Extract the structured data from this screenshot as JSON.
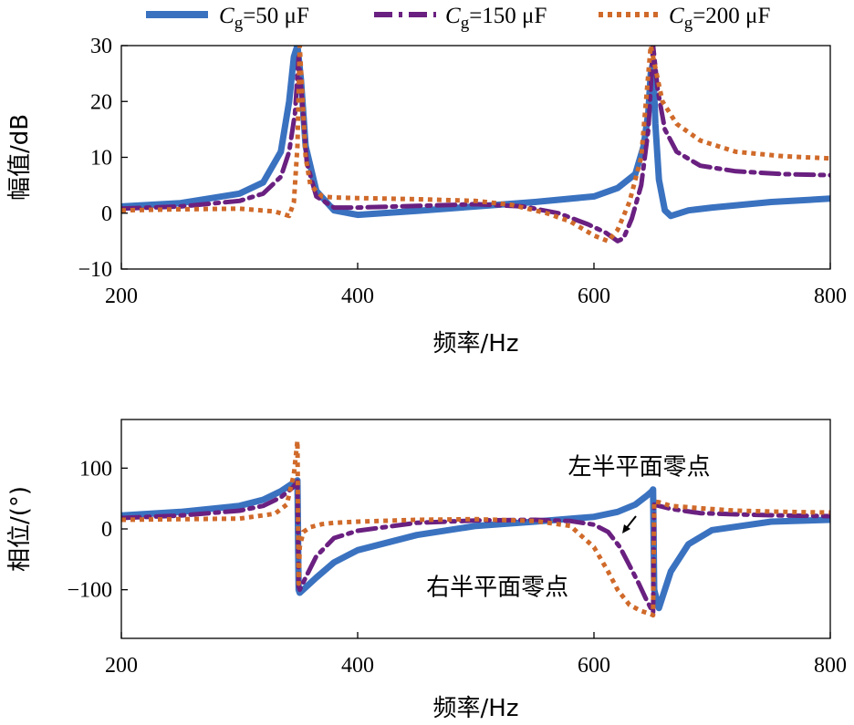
{
  "legend": [
    {
      "name_main": "C",
      "name_sub": "g",
      "name_rest": "=50 μF",
      "color": "#3a72c0",
      "dash": "solid"
    },
    {
      "name_main": "C",
      "name_sub": "g",
      "name_rest": "=150 μF",
      "color": "#6a2080",
      "dash": "dashdot"
    },
    {
      "name_main": "C",
      "name_sub": "g",
      "name_rest": "=200 μF",
      "color": "#d06a2a",
      "dash": "dotted"
    }
  ],
  "chart_data": [
    {
      "type": "line",
      "title": "",
      "xlabel": "频率/Hz",
      "ylabel": "幅值/dB",
      "xlim": [
        200,
        800
      ],
      "ylim": [
        -10,
        30
      ],
      "xticks": [
        200,
        400,
        600,
        800
      ],
      "yticks": [
        -10,
        0,
        10,
        20,
        30
      ],
      "series": [
        {
          "name": "Cg=50 μF",
          "x": [
            200,
            250,
            300,
            320,
            335,
            342,
            346,
            349,
            352,
            356,
            365,
            380,
            400,
            450,
            500,
            550,
            600,
            620,
            635,
            642,
            646,
            648,
            650,
            652,
            655,
            660,
            665,
            680,
            700,
            750,
            800
          ],
          "y": [
            1.2,
            1.8,
            3.5,
            5.5,
            11,
            20,
            28,
            30,
            24,
            12,
            4,
            0.5,
            -0.3,
            0.4,
            1.2,
            2,
            3,
            4.5,
            7,
            12,
            18,
            25,
            27,
            16,
            6,
            0.5,
            -0.5,
            0.5,
            1,
            2,
            2.6
          ]
        },
        {
          "name": "Cg=150 μF",
          "x": [
            200,
            250,
            300,
            320,
            335,
            342,
            347,
            350,
            353,
            357,
            365,
            380,
            400,
            450,
            500,
            540,
            570,
            595,
            610,
            620,
            625,
            632,
            640,
            646,
            650,
            654,
            660,
            670,
            690,
            720,
            760,
            800
          ],
          "y": [
            0.8,
            1.2,
            2.2,
            3.5,
            6.5,
            11,
            18,
            28,
            20,
            9,
            3,
            1,
            1,
            1.3,
            1.6,
            1.2,
            0,
            -2,
            -3.5,
            -5,
            -4.5,
            -1,
            5,
            15,
            30,
            22,
            15,
            11,
            8.5,
            7.5,
            7,
            6.8
          ]
        },
        {
          "name": "Cg=200 μF",
          "x": [
            200,
            250,
            300,
            330,
            342,
            346,
            349,
            351,
            353,
            356,
            360,
            370,
            380,
            400,
            450,
            500,
            530,
            560,
            580,
            600,
            612,
            620,
            630,
            640,
            648,
            652,
            658,
            670,
            690,
            720,
            760,
            800
          ],
          "y": [
            0.5,
            0.7,
            0.8,
            0.3,
            -0.5,
            2,
            12,
            30,
            22,
            10,
            5,
            3,
            2.8,
            2.7,
            2.5,
            2.2,
            1.5,
            0,
            -1.5,
            -4,
            -5,
            -3,
            2,
            10,
            30,
            26,
            20,
            16,
            13,
            11,
            10.2,
            9.8
          ]
        }
      ]
    },
    {
      "type": "line",
      "title": "",
      "xlabel": "频率/Hz",
      "ylabel": "相位/(°)",
      "xlim": [
        200,
        800
      ],
      "ylim": [
        -180,
        180
      ],
      "xticks": [
        200,
        400,
        600,
        800
      ],
      "yticks": [
        -100,
        0,
        100
      ],
      "annotations": [
        {
          "text": "左半平面零点",
          "x": 578,
          "y": 103
        },
        {
          "text": "右半平面零点",
          "x": 458,
          "y": -95
        }
      ],
      "series": [
        {
          "name": "Cg=50 μF",
          "x": [
            200,
            250,
            300,
            320,
            335,
            345,
            349,
            350,
            351,
            355,
            365,
            380,
            400,
            450,
            500,
            550,
            600,
            620,
            635,
            645,
            649,
            650,
            651,
            655,
            665,
            680,
            700,
            750,
            800
          ],
          "y": [
            22,
            28,
            38,
            48,
            62,
            75,
            80,
            -100,
            -105,
            -98,
            -80,
            -55,
            -35,
            -10,
            5,
            12,
            20,
            28,
            40,
            55,
            62,
            65,
            -100,
            -130,
            -70,
            -25,
            -2,
            12,
            15
          ]
        },
        {
          "name": "Cg=150 μF",
          "x": [
            200,
            250,
            300,
            320,
            335,
            345,
            349,
            350,
            351,
            356,
            365,
            380,
            400,
            450,
            500,
            550,
            580,
            600,
            612,
            622,
            630,
            638,
            644,
            648,
            650,
            651,
            655,
            665,
            690,
            720,
            760,
            800
          ],
          "y": [
            18,
            22,
            30,
            38,
            52,
            68,
            78,
            -95,
            -100,
            -80,
            -45,
            -15,
            -3,
            10,
            14,
            15,
            13,
            7,
            -5,
            -30,
            -60,
            -90,
            -115,
            -130,
            -138,
            40,
            38,
            33,
            26,
            24,
            22,
            21
          ]
        },
        {
          "name": "Cg=200 μF",
          "x": [
            200,
            250,
            300,
            330,
            340,
            346,
            349,
            350,
            351,
            354,
            360,
            370,
            380,
            400,
            450,
            500,
            550,
            580,
            600,
            612,
            620,
            630,
            640,
            648,
            650,
            651,
            655,
            665,
            690,
            720,
            760,
            800
          ],
          "y": [
            15,
            16,
            17,
            25,
            40,
            90,
            145,
            -90,
            -30,
            -5,
            3,
            8,
            10,
            12,
            15,
            16,
            13,
            5,
            -30,
            -70,
            -100,
            -125,
            -135,
            -140,
            -142,
            45,
            44,
            38,
            34,
            30,
            28,
            27
          ]
        }
      ]
    }
  ]
}
